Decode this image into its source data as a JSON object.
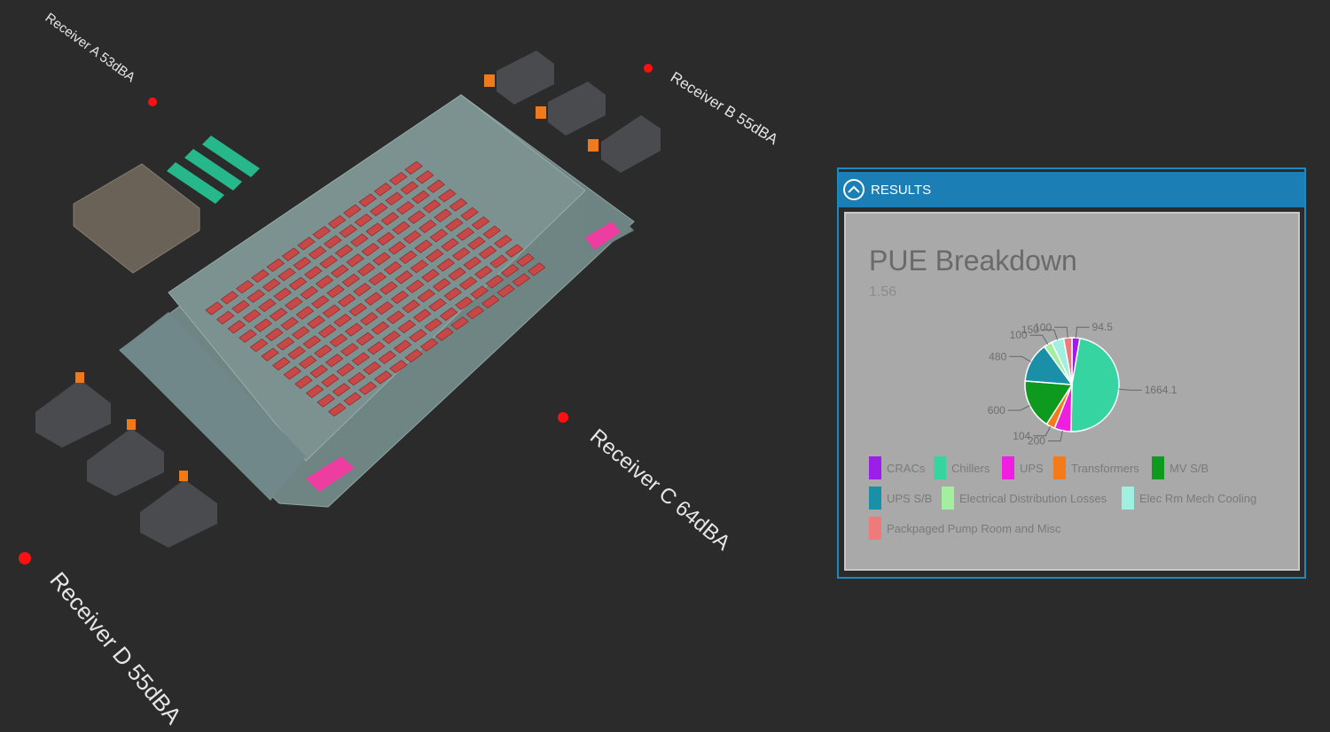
{
  "scene": {
    "receivers": [
      {
        "label": "Receiver A  53dBA"
      },
      {
        "label": "Receiver B  55dBA"
      },
      {
        "label": "Receiver C  64dBA"
      },
      {
        "label": "Receiver D  55dBA"
      }
    ]
  },
  "panel": {
    "header": "RESULTS"
  },
  "chart_data": {
    "type": "pie",
    "title": "PUE Breakdown",
    "subtitle": "1.56",
    "categories": [
      "CRACs",
      "Chillers",
      "UPS",
      "Transformers",
      "MV S/B",
      "UPS S/B",
      "Electrical Distribution Losses",
      "Elec Rm Mech Cooling",
      "Packpaged Pump Room and Misc"
    ],
    "values": [
      94.5,
      1664.1,
      200,
      104,
      600,
      480,
      100,
      150,
      100
    ],
    "colors": [
      "#9b1fe8",
      "#35d4a0",
      "#f01ee0",
      "#f57a1a",
      "#0e9a1e",
      "#1a8fa8",
      "#a4eea0",
      "#9ff0e0",
      "#f07a7a"
    ]
  }
}
